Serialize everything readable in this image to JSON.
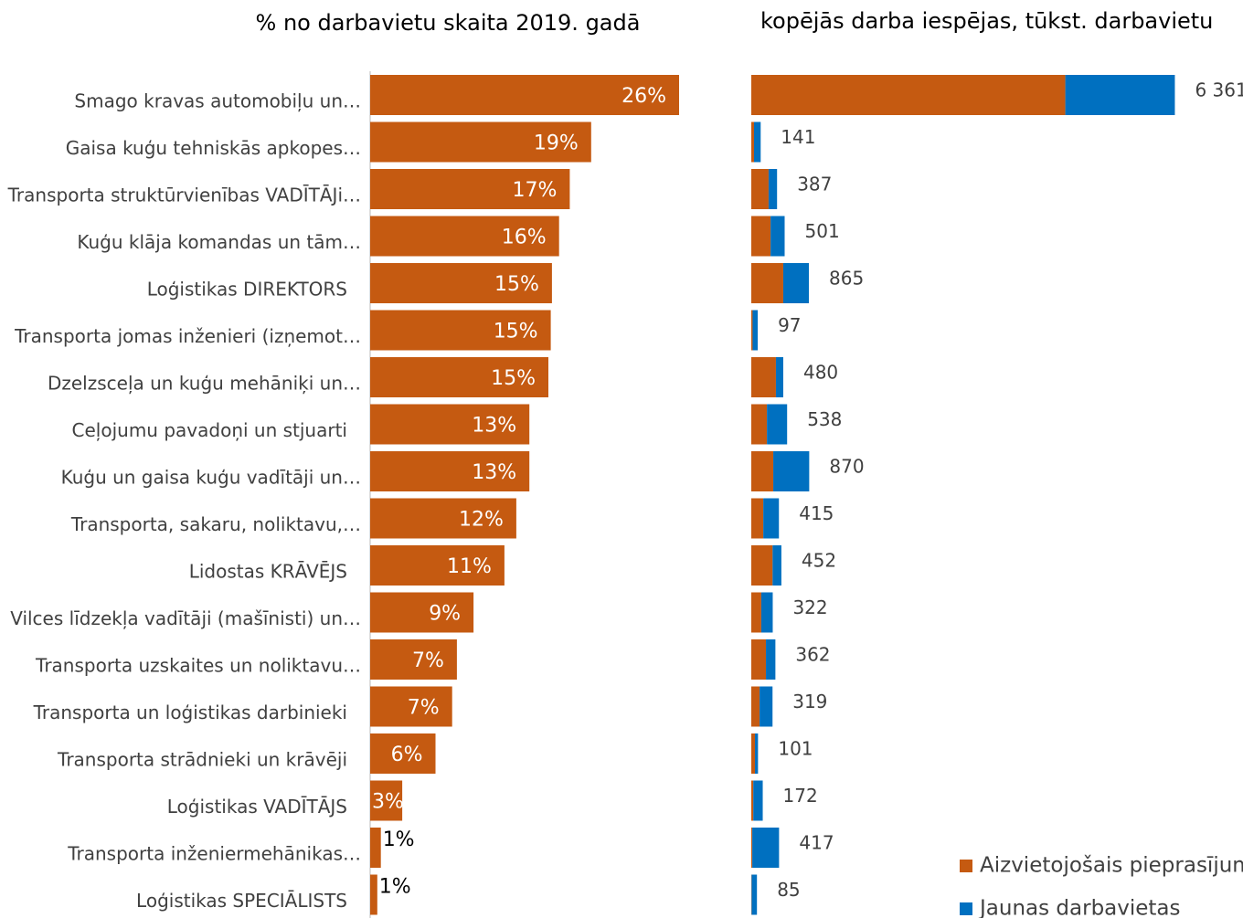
{
  "chart_data": [
    {
      "type": "bar",
      "orientation": "horizontal",
      "title": "% no darbavietu skaita 2019. gadā",
      "categories": [
        "Smago kravas automobiļu un…",
        "Gaisa kuģu tehniskās apkopes…",
        "Transporta struktūrvienības VADĪTĀJi…",
        "Kuģu klāja komandas un tām…",
        "Loģistikas DIREKTORS",
        "Transporta jomas inženieri (izņemot…",
        "Dzelzsceļa un kuģu mehāniķi un…",
        "Ceļojumu pavadoņi un stjuarti",
        "Kuģu un gaisa kuģu vadītāji un…",
        "Transporta, sakaru, noliktavu,…",
        "Lidostas KRĀVĒJS",
        "Vilces līdzekļa vadītāji (mašīnisti) un…",
        "Transporta uzskaites un noliktavu…",
        "Transporta un loģistikas darbinieki",
        "Transporta strādnieki un krāvēji",
        "Loģistikas VADĪTĀJS",
        "Transporta inženiermehānikas…",
        "Loģistikas SPECIĀLISTS"
      ],
      "values": [
        26.0,
        18.6,
        16.8,
        15.9,
        15.3,
        15.2,
        15.0,
        13.4,
        13.4,
        12.3,
        11.3,
        8.7,
        7.3,
        6.9,
        5.5,
        2.7,
        0.9,
        0.6
      ],
      "value_labels": [
        "26%",
        "19%",
        "17%",
        "16%",
        "15%",
        "15%",
        "15%",
        "13%",
        "13%",
        "12%",
        "11%",
        "9%",
        "7%",
        "7%",
        "6%",
        "3%",
        "1%",
        "1%"
      ],
      "color": "#c55a11",
      "xlim": [
        0,
        30
      ]
    },
    {
      "type": "stacked_bar",
      "orientation": "horizontal",
      "title": "kopējās darba iespējas, tūkst. darbavietu",
      "series": [
        {
          "name": "Aizvietojošais pieprasījums",
          "color": "#c55a11",
          "values": [
            4716,
            41,
            260,
            290,
            480,
            20,
            370,
            235,
            330,
            180,
            320,
            150,
            220,
            125,
            55,
            30,
            15,
            5
          ]
        },
        {
          "name": "Jaunas darbavietas",
          "color": "#0070c0",
          "values": [
            1645,
            100,
            127,
            211,
            385,
            77,
            110,
            303,
            540,
            235,
            132,
            172,
            142,
            194,
            46,
            142,
            402,
            80
          ]
        }
      ],
      "totals": [
        6361,
        141,
        387,
        501,
        865,
        97,
        480,
        538,
        870,
        415,
        452,
        322,
        362,
        319,
        101,
        172,
        417,
        85
      ],
      "total_labels": [
        "6 361",
        "141",
        "387",
        "501",
        "865",
        "97",
        "480",
        "538",
        "870",
        "415",
        "452",
        "322",
        "362",
        "319",
        "101",
        "172",
        "417",
        "85"
      ],
      "xlim": [
        0,
        7000
      ]
    }
  ]
}
